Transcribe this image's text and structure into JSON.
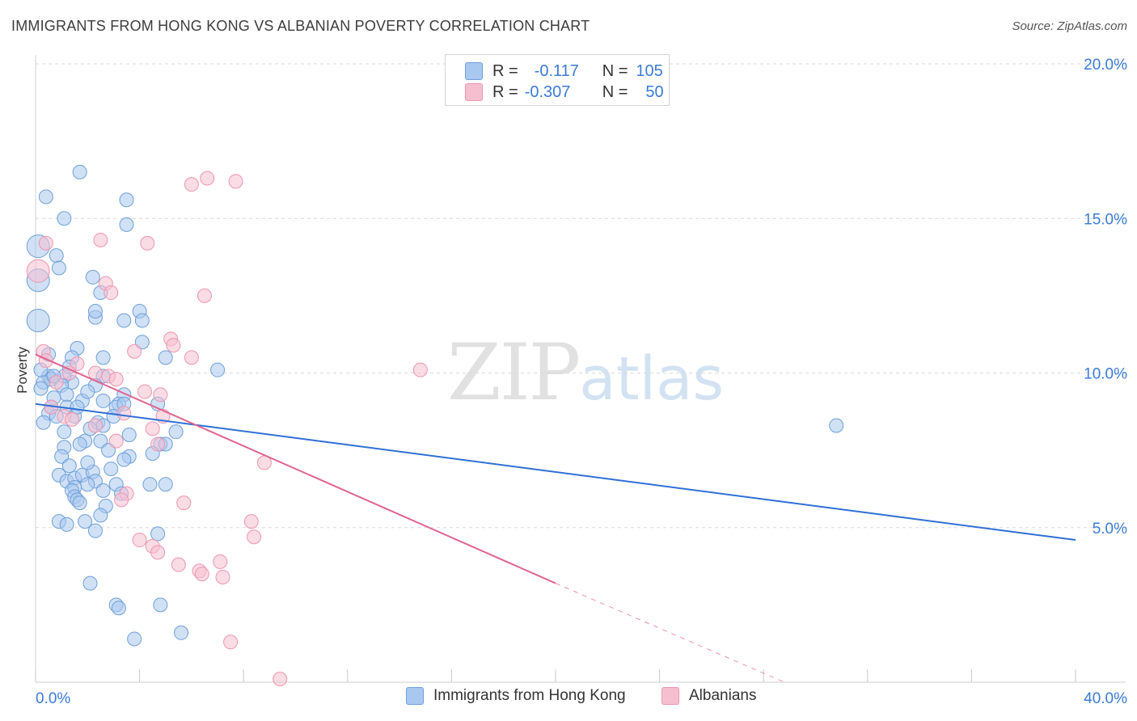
{
  "header": {
    "title": "IMMIGRANTS FROM HONG KONG VS ALBANIAN POVERTY CORRELATION CHART",
    "source": "Source: ZipAtlas.com"
  },
  "watermark": {
    "zip": "ZIP",
    "atlas": "atlas"
  },
  "legend": {
    "rows": [
      {
        "r_label": "R =",
        "r_value": "-0.117",
        "n_label": "N =",
        "n_value": "105"
      },
      {
        "r_label": "R =",
        "r_value": "-0.307",
        "n_label": "N =",
        "n_value": "50"
      }
    ]
  },
  "colors": {
    "blue_fill": "#a9c8ef",
    "blue_stroke": "#6f9fd8",
    "blue_line": "#2f6fd4",
    "pink_fill": "#f6bfd0",
    "pink_stroke": "#ec95b0",
    "pink_line": "#e0648f",
    "axis_text": "#3a7bd5",
    "grid": "#d9d9d9"
  },
  "chart_data": {
    "type": "scatter",
    "title": "IMMIGRANTS FROM HONG KONG VS ALBANIAN POVERTY CORRELATION CHART",
    "xlabel": "",
    "ylabel": "Poverty",
    "xlim": [
      0,
      40
    ],
    "ylim": [
      0,
      20
    ],
    "x_tick_labels": [
      "0.0%",
      "40.0%"
    ],
    "y_ticks": [
      5,
      10,
      15,
      20
    ],
    "y_tick_labels": [
      "5.0%",
      "10.0%",
      "15.0%",
      "20.0%"
    ],
    "series": [
      {
        "name": "Immigrants from Hong Kong",
        "r": -0.117,
        "n": 105,
        "trend": {
          "x0": 0,
          "y0": 9.0,
          "x1": 40,
          "y1": 4.6
        },
        "points": [
          [
            0.1,
            14.1
          ],
          [
            0.1,
            13.0
          ],
          [
            0.1,
            11.7
          ],
          [
            0.4,
            15.7
          ],
          [
            0.5,
            9.9
          ],
          [
            0.6,
            9.8
          ],
          [
            0.3,
            9.7
          ],
          [
            0.2,
            9.5
          ],
          [
            0.5,
            8.7
          ],
          [
            0.3,
            8.4
          ],
          [
            0.7,
            9.2
          ],
          [
            0.6,
            8.9
          ],
          [
            0.8,
            13.8
          ],
          [
            0.9,
            13.4
          ],
          [
            1.1,
            15.0
          ],
          [
            1.7,
            16.5
          ],
          [
            3.5,
            15.6
          ],
          [
            3.5,
            14.8
          ],
          [
            2.2,
            13.1
          ],
          [
            2.5,
            12.6
          ],
          [
            2.3,
            11.8
          ],
          [
            2.3,
            12.0
          ],
          [
            3.4,
            11.7
          ],
          [
            4.0,
            12.0
          ],
          [
            4.1,
            11.7
          ],
          [
            4.1,
            11.0
          ],
          [
            5.0,
            10.5
          ],
          [
            7.0,
            10.1
          ],
          [
            2.6,
            10.5
          ],
          [
            2.6,
            9.9
          ],
          [
            1.6,
            10.8
          ],
          [
            1.4,
            10.5
          ],
          [
            1.4,
            9.7
          ],
          [
            1.1,
            9.9
          ],
          [
            1.0,
            9.6
          ],
          [
            1.2,
            9.3
          ],
          [
            2.3,
            9.6
          ],
          [
            3.4,
            9.3
          ],
          [
            3.2,
            9.0
          ],
          [
            1.2,
            8.9
          ],
          [
            1.5,
            8.6
          ],
          [
            1.8,
            9.1
          ],
          [
            2.6,
            9.1
          ],
          [
            2.4,
            8.4
          ],
          [
            2.6,
            8.3
          ],
          [
            3.1,
            8.9
          ],
          [
            3.4,
            9.0
          ],
          [
            4.7,
            9.0
          ],
          [
            5.4,
            8.1
          ],
          [
            4.8,
            7.7
          ],
          [
            5.0,
            7.7
          ],
          [
            3.6,
            7.3
          ],
          [
            3.4,
            7.2
          ],
          [
            2.5,
            7.8
          ],
          [
            2.8,
            7.5
          ],
          [
            1.9,
            7.8
          ],
          [
            1.7,
            7.7
          ],
          [
            1.1,
            8.1
          ],
          [
            1.1,
            7.6
          ],
          [
            1.0,
            7.3
          ],
          [
            0.9,
            6.7
          ],
          [
            1.2,
            6.5
          ],
          [
            1.5,
            6.6
          ],
          [
            1.8,
            6.7
          ],
          [
            2.2,
            6.8
          ],
          [
            2.3,
            6.5
          ],
          [
            2.0,
            6.4
          ],
          [
            1.5,
            6.3
          ],
          [
            1.4,
            6.2
          ],
          [
            1.5,
            6.0
          ],
          [
            1.6,
            5.9
          ],
          [
            2.7,
            5.7
          ],
          [
            3.1,
            6.4
          ],
          [
            4.4,
            6.4
          ],
          [
            5.0,
            6.4
          ],
          [
            2.5,
            5.4
          ],
          [
            1.9,
            5.2
          ],
          [
            0.9,
            5.2
          ],
          [
            1.2,
            5.1
          ],
          [
            2.3,
            4.9
          ],
          [
            4.7,
            4.8
          ],
          [
            2.1,
            3.2
          ],
          [
            3.1,
            2.5
          ],
          [
            3.2,
            2.4
          ],
          [
            4.8,
            2.5
          ],
          [
            3.8,
            1.4
          ],
          [
            5.6,
            1.6
          ],
          [
            30.8,
            8.3
          ],
          [
            0.5,
            10.6
          ],
          [
            0.7,
            9.9
          ],
          [
            1.3,
            10.2
          ],
          [
            2.0,
            9.4
          ],
          [
            3.0,
            8.6
          ],
          [
            2.1,
            8.2
          ],
          [
            1.6,
            8.9
          ],
          [
            0.8,
            8.6
          ],
          [
            1.3,
            7.0
          ],
          [
            2.0,
            7.1
          ],
          [
            2.9,
            6.9
          ],
          [
            3.3,
            6.1
          ],
          [
            1.7,
            5.8
          ],
          [
            2.6,
            6.2
          ],
          [
            3.6,
            8.0
          ],
          [
            4.5,
            7.4
          ],
          [
            0.2,
            10.1
          ]
        ]
      },
      {
        "name": "Albanians",
        "r": -0.307,
        "n": 50,
        "trend": {
          "x0": 0,
          "y0": 10.6,
          "x1": 20,
          "y1": 3.2,
          "dash_to_x": 28.8,
          "dash_to_y": 0
        },
        "points": [
          [
            0.1,
            13.3
          ],
          [
            0.4,
            14.2
          ],
          [
            6.0,
            16.1
          ],
          [
            6.6,
            16.3
          ],
          [
            7.7,
            16.2
          ],
          [
            4.3,
            14.2
          ],
          [
            2.5,
            14.3
          ],
          [
            2.7,
            12.9
          ],
          [
            2.9,
            12.6
          ],
          [
            6.5,
            12.5
          ],
          [
            5.2,
            11.1
          ],
          [
            5.3,
            10.9
          ],
          [
            3.8,
            10.7
          ],
          [
            6.0,
            10.5
          ],
          [
            0.3,
            10.7
          ],
          [
            0.4,
            10.4
          ],
          [
            1.6,
            10.3
          ],
          [
            1.3,
            10.0
          ],
          [
            2.3,
            10.0
          ],
          [
            2.8,
            9.9
          ],
          [
            3.1,
            9.8
          ],
          [
            0.8,
            9.7
          ],
          [
            4.2,
            9.4
          ],
          [
            4.8,
            9.3
          ],
          [
            0.6,
            8.9
          ],
          [
            1.1,
            8.6
          ],
          [
            1.4,
            8.5
          ],
          [
            3.4,
            8.7
          ],
          [
            4.9,
            8.6
          ],
          [
            2.3,
            8.3
          ],
          [
            4.5,
            8.2
          ],
          [
            3.1,
            7.8
          ],
          [
            4.7,
            7.7
          ],
          [
            8.8,
            7.1
          ],
          [
            3.5,
            6.1
          ],
          [
            5.7,
            5.8
          ],
          [
            3.3,
            5.9
          ],
          [
            8.3,
            5.2
          ],
          [
            8.4,
            4.7
          ],
          [
            4.0,
            4.6
          ],
          [
            4.5,
            4.4
          ],
          [
            4.7,
            4.2
          ],
          [
            5.5,
            3.8
          ],
          [
            6.3,
            3.6
          ],
          [
            6.4,
            3.5
          ],
          [
            7.1,
            3.9
          ],
          [
            7.2,
            3.4
          ],
          [
            7.5,
            1.3
          ],
          [
            14.8,
            10.1
          ],
          [
            9.4,
            0.1
          ]
        ]
      }
    ]
  },
  "bottom_legend": {
    "items": [
      {
        "label": "Immigrants from Hong Kong"
      },
      {
        "label": "Albanians"
      }
    ]
  }
}
